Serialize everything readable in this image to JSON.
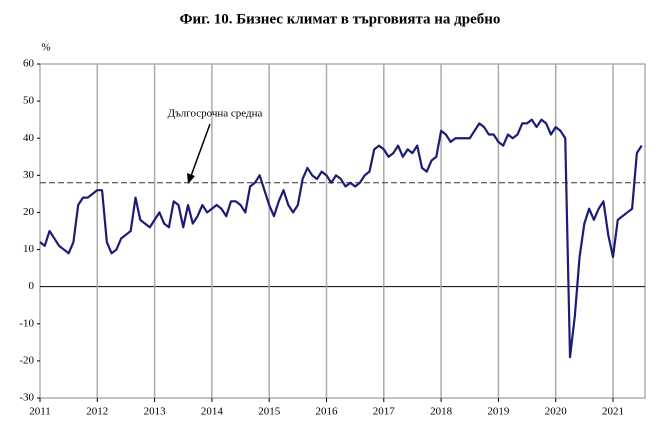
{
  "chart_data": {
    "type": "line",
    "title": "Фиг. 10. Бизнес климат в търговията на дребно",
    "y_unit": "%",
    "categories": [
      "2011",
      null,
      null,
      null,
      null,
      null,
      null,
      null,
      null,
      null,
      null,
      null,
      "2012",
      null,
      null,
      null,
      null,
      null,
      null,
      null,
      null,
      null,
      null,
      null,
      "2013",
      null,
      null,
      null,
      null,
      null,
      null,
      null,
      null,
      null,
      null,
      null,
      "2014",
      null,
      null,
      null,
      null,
      null,
      null,
      null,
      null,
      null,
      null,
      null,
      "2015",
      null,
      null,
      null,
      null,
      null,
      null,
      null,
      null,
      null,
      null,
      null,
      "2016",
      null,
      null,
      null,
      null,
      null,
      null,
      null,
      null,
      null,
      null,
      null,
      "2017",
      null,
      null,
      null,
      null,
      null,
      null,
      null,
      null,
      null,
      null,
      null,
      "2018",
      null,
      null,
      null,
      null,
      null,
      null,
      null,
      null,
      null,
      null,
      null,
      "2019",
      null,
      null,
      null,
      null,
      null,
      null,
      null,
      null,
      null,
      null,
      null,
      "2020",
      null,
      null,
      null,
      null,
      null,
      null,
      null,
      null,
      null,
      null,
      null,
      "2021",
      null,
      null,
      null,
      null,
      null,
      null
    ],
    "series": [
      {
        "color": "#1c1c78",
        "values": [
          12,
          11,
          15,
          13,
          11,
          10,
          9,
          12,
          22,
          24,
          24,
          25,
          26,
          26,
          12,
          9,
          10,
          13,
          14,
          15,
          24,
          18,
          17,
          16,
          18,
          20,
          17,
          16,
          23,
          22,
          16,
          22,
          17,
          19,
          22,
          20,
          21,
          22,
          21,
          19,
          23,
          23,
          22,
          20,
          27,
          28,
          30,
          26,
          22,
          19,
          23,
          26,
          22,
          20,
          22,
          29,
          32,
          30,
          29,
          31,
          30,
          28,
          30,
          29,
          27,
          28,
          27,
          28,
          30,
          31,
          37,
          38,
          37,
          35,
          36,
          38,
          35,
          37,
          36,
          38,
          32,
          31,
          34,
          35,
          42,
          41,
          39,
          40,
          40,
          40,
          40,
          42,
          44,
          43,
          41,
          41,
          39,
          38,
          41,
          40,
          41,
          44,
          44,
          45,
          43,
          45,
          44,
          41,
          43,
          42,
          40,
          -19,
          -8,
          8,
          17,
          21,
          18,
          21,
          23,
          14,
          8,
          18,
          19,
          20,
          21,
          36,
          38
        ]
      }
    ],
    "average": {
      "value": 28,
      "label": "Дългосрочна средна"
    },
    "ylim": [
      -30,
      60
    ],
    "yticks": [
      -30,
      -20,
      -10,
      0,
      10,
      20,
      30,
      40,
      50,
      60
    ],
    "grid": true
  }
}
